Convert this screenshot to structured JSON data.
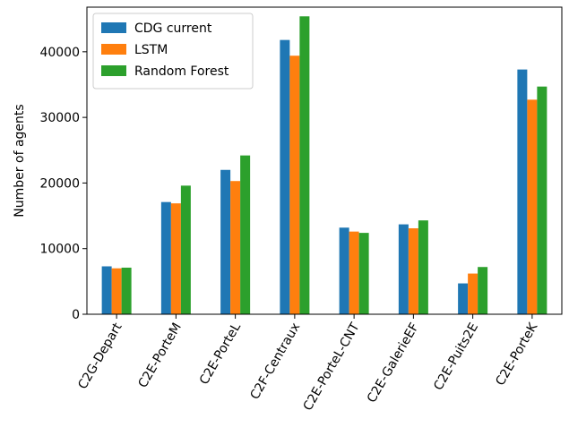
{
  "chart_data": {
    "type": "bar",
    "ylabel": "Number of agents",
    "xlabel": "",
    "ylim": [
      0,
      46800
    ],
    "yticks": [
      0,
      10000,
      20000,
      30000,
      40000
    ],
    "grid": false,
    "legend_position": "top-left",
    "categories": [
      "C2G-Depart",
      "C2E-PorteM",
      "C2E-PorteL",
      "C2F-Centraux",
      "C2E-PorteL-CNT",
      "C2E-GalerieEF",
      "C2E-Puits2E",
      "C2E-PorteK"
    ],
    "series": [
      {
        "name": "CDG current",
        "color": "#1f77b4",
        "values": [
          7300,
          17100,
          22000,
          41800,
          13200,
          13700,
          4700,
          37300
        ]
      },
      {
        "name": "LSTM",
        "color": "#ff7f0e",
        "values": [
          7000,
          16900,
          20300,
          39400,
          12600,
          13100,
          6200,
          32700
        ]
      },
      {
        "name": "Random Forest",
        "color": "#2ca02c",
        "values": [
          7100,
          19600,
          24200,
          45400,
          12400,
          14300,
          7200,
          34700
        ]
      }
    ]
  }
}
